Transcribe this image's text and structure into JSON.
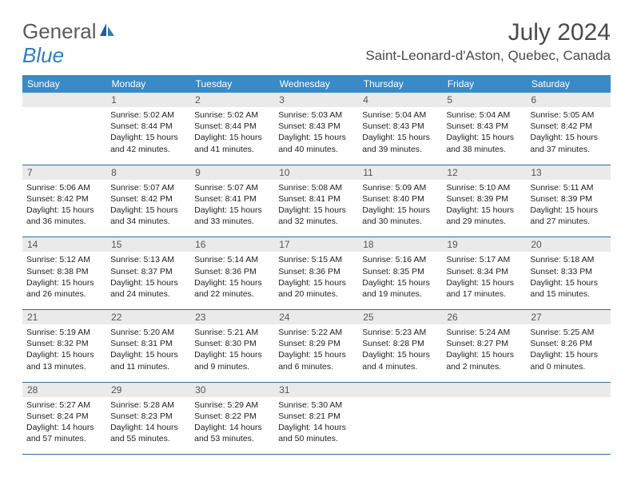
{
  "logo": {
    "text1": "General",
    "text2": "Blue"
  },
  "title": "July 2024",
  "location": "Saint-Leonard-d'Aston, Quebec, Canada",
  "dayNames": [
    "Sunday",
    "Monday",
    "Tuesday",
    "Wednesday",
    "Thursday",
    "Friday",
    "Saturday"
  ],
  "colors": {
    "headerBg": "#3a8ac8",
    "borderLine": "#2d6a9e",
    "dayStripe": "#eaeaea",
    "logoGray": "#5b5b5b",
    "logoBlue": "#2f7fbf"
  },
  "startOffset": 1,
  "days": [
    {
      "n": 1,
      "sr": "5:02 AM",
      "ss": "8:44 PM",
      "dl": "15 hours and 42 minutes."
    },
    {
      "n": 2,
      "sr": "5:02 AM",
      "ss": "8:44 PM",
      "dl": "15 hours and 41 minutes."
    },
    {
      "n": 3,
      "sr": "5:03 AM",
      "ss": "8:43 PM",
      "dl": "15 hours and 40 minutes."
    },
    {
      "n": 4,
      "sr": "5:04 AM",
      "ss": "8:43 PM",
      "dl": "15 hours and 39 minutes."
    },
    {
      "n": 5,
      "sr": "5:04 AM",
      "ss": "8:43 PM",
      "dl": "15 hours and 38 minutes."
    },
    {
      "n": 6,
      "sr": "5:05 AM",
      "ss": "8:42 PM",
      "dl": "15 hours and 37 minutes."
    },
    {
      "n": 7,
      "sr": "5:06 AM",
      "ss": "8:42 PM",
      "dl": "15 hours and 36 minutes."
    },
    {
      "n": 8,
      "sr": "5:07 AM",
      "ss": "8:42 PM",
      "dl": "15 hours and 34 minutes."
    },
    {
      "n": 9,
      "sr": "5:07 AM",
      "ss": "8:41 PM",
      "dl": "15 hours and 33 minutes."
    },
    {
      "n": 10,
      "sr": "5:08 AM",
      "ss": "8:41 PM",
      "dl": "15 hours and 32 minutes."
    },
    {
      "n": 11,
      "sr": "5:09 AM",
      "ss": "8:40 PM",
      "dl": "15 hours and 30 minutes."
    },
    {
      "n": 12,
      "sr": "5:10 AM",
      "ss": "8:39 PM",
      "dl": "15 hours and 29 minutes."
    },
    {
      "n": 13,
      "sr": "5:11 AM",
      "ss": "8:39 PM",
      "dl": "15 hours and 27 minutes."
    },
    {
      "n": 14,
      "sr": "5:12 AM",
      "ss": "8:38 PM",
      "dl": "15 hours and 26 minutes."
    },
    {
      "n": 15,
      "sr": "5:13 AM",
      "ss": "8:37 PM",
      "dl": "15 hours and 24 minutes."
    },
    {
      "n": 16,
      "sr": "5:14 AM",
      "ss": "8:36 PM",
      "dl": "15 hours and 22 minutes."
    },
    {
      "n": 17,
      "sr": "5:15 AM",
      "ss": "8:36 PM",
      "dl": "15 hours and 20 minutes."
    },
    {
      "n": 18,
      "sr": "5:16 AM",
      "ss": "8:35 PM",
      "dl": "15 hours and 19 minutes."
    },
    {
      "n": 19,
      "sr": "5:17 AM",
      "ss": "8:34 PM",
      "dl": "15 hours and 17 minutes."
    },
    {
      "n": 20,
      "sr": "5:18 AM",
      "ss": "8:33 PM",
      "dl": "15 hours and 15 minutes."
    },
    {
      "n": 21,
      "sr": "5:19 AM",
      "ss": "8:32 PM",
      "dl": "15 hours and 13 minutes."
    },
    {
      "n": 22,
      "sr": "5:20 AM",
      "ss": "8:31 PM",
      "dl": "15 hours and 11 minutes."
    },
    {
      "n": 23,
      "sr": "5:21 AM",
      "ss": "8:30 PM",
      "dl": "15 hours and 9 minutes."
    },
    {
      "n": 24,
      "sr": "5:22 AM",
      "ss": "8:29 PM",
      "dl": "15 hours and 6 minutes."
    },
    {
      "n": 25,
      "sr": "5:23 AM",
      "ss": "8:28 PM",
      "dl": "15 hours and 4 minutes."
    },
    {
      "n": 26,
      "sr": "5:24 AM",
      "ss": "8:27 PM",
      "dl": "15 hours and 2 minutes."
    },
    {
      "n": 27,
      "sr": "5:25 AM",
      "ss": "8:26 PM",
      "dl": "15 hours and 0 minutes."
    },
    {
      "n": 28,
      "sr": "5:27 AM",
      "ss": "8:24 PM",
      "dl": "14 hours and 57 minutes."
    },
    {
      "n": 29,
      "sr": "5:28 AM",
      "ss": "8:23 PM",
      "dl": "14 hours and 55 minutes."
    },
    {
      "n": 30,
      "sr": "5:29 AM",
      "ss": "8:22 PM",
      "dl": "14 hours and 53 minutes."
    },
    {
      "n": 31,
      "sr": "5:30 AM",
      "ss": "8:21 PM",
      "dl": "14 hours and 50 minutes."
    }
  ],
  "labels": {
    "sunrise": "Sunrise:",
    "sunset": "Sunset:",
    "daylight": "Daylight:"
  }
}
